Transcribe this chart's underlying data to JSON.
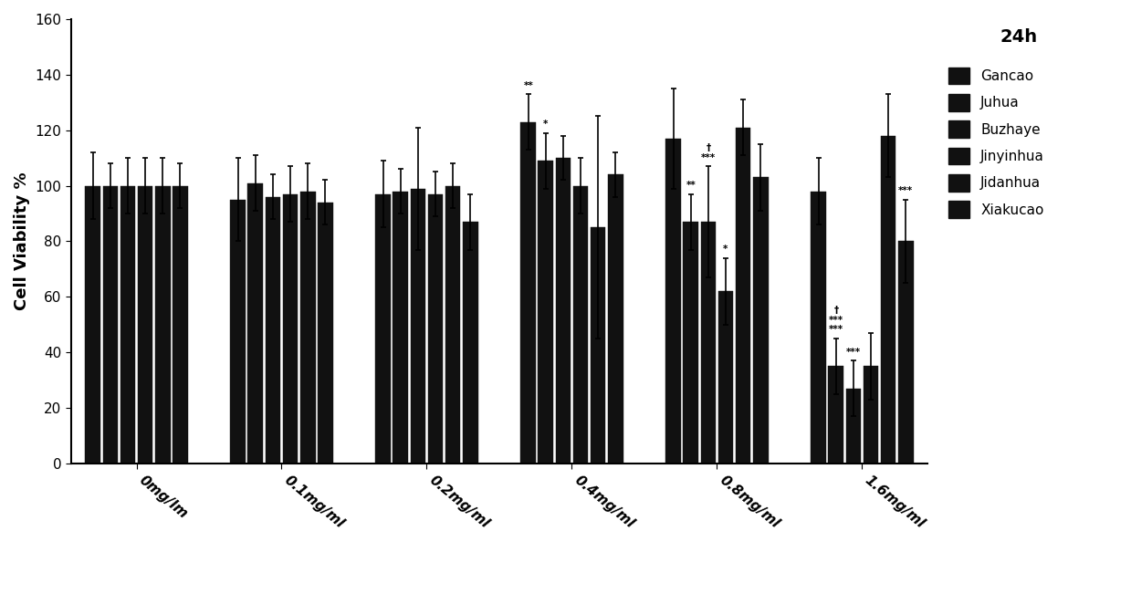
{
  "title": "24h",
  "ylabel": "Cell Viability %",
  "ylim": [
    0,
    160
  ],
  "yticks": [
    0,
    20,
    40,
    60,
    80,
    100,
    120,
    140,
    160
  ],
  "categories": [
    "0mg/lm",
    "0.1mg/ml",
    "0.2mg/ml",
    "0.4mg/ml",
    "0.8mg/ml",
    "1.6mg/ml"
  ],
  "legend_labels": [
    "Gancao",
    "Juhua",
    "Buzhaye",
    "Jinyinhua",
    "Jidanhua",
    "Xiakucao"
  ],
  "bar_color": "#111111",
  "bar_values": [
    [
      100,
      100,
      100,
      100,
      100,
      100
    ],
    [
      95,
      101,
      96,
      97,
      98,
      94
    ],
    [
      97,
      98,
      99,
      97,
      100,
      87
    ],
    [
      123,
      109,
      110,
      100,
      85,
      104
    ],
    [
      117,
      87,
      87,
      62,
      121,
      103
    ],
    [
      98,
      35,
      27,
      35,
      118,
      80
    ]
  ],
  "bar_errors": [
    [
      12,
      8,
      10,
      10,
      10,
      8
    ],
    [
      15,
      10,
      8,
      10,
      10,
      8
    ],
    [
      12,
      8,
      22,
      8,
      8,
      10
    ],
    [
      10,
      10,
      8,
      10,
      40,
      8
    ],
    [
      18,
      10,
      20,
      12,
      10,
      12
    ],
    [
      12,
      10,
      10,
      12,
      15,
      15
    ]
  ],
  "annotations": [
    [
      null,
      null,
      null,
      null,
      null,
      null
    ],
    [
      null,
      null,
      null,
      null,
      null,
      null
    ],
    [
      null,
      null,
      null,
      null,
      null,
      null
    ],
    [
      "**",
      "*",
      null,
      null,
      null,
      null
    ],
    [
      null,
      "**",
      "†\n***",
      "*",
      null,
      null
    ],
    [
      null,
      "†\n***\n***",
      "***",
      null,
      null,
      "***"
    ]
  ]
}
